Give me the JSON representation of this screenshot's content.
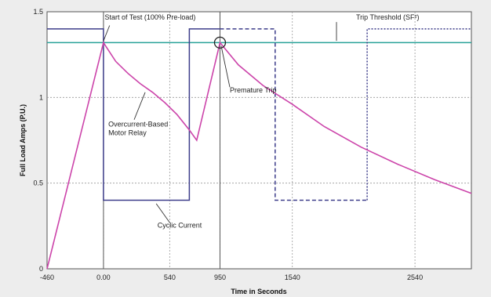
{
  "chart_data": {
    "type": "line",
    "xlabel": "Time in Seconds",
    "ylabel": "Full Load Amps (P.U.)",
    "xlim": [
      -460,
      3000
    ],
    "ylim": [
      0,
      1.5
    ],
    "x_ticks": [
      {
        "value": -460,
        "label": "-460"
      },
      {
        "value": 0,
        "label": "0.00"
      },
      {
        "value": 540,
        "label": "540"
      },
      {
        "value": 950,
        "label": "950"
      },
      {
        "value": 1540,
        "label": "1540"
      },
      {
        "value": 2540,
        "label": "2540"
      }
    ],
    "y_ticks": [
      {
        "value": 0,
        "label": "0"
      },
      {
        "value": 0.5,
        "label": "0.5"
      },
      {
        "value": 1,
        "label": "1"
      },
      {
        "value": 1.5,
        "label": "1.5"
      }
    ],
    "grid": true,
    "series": [
      {
        "key": "relay",
        "color": "#cc44aa",
        "style": "solid",
        "x": [
          -460,
          0,
          100,
          200,
          300,
          400,
          500,
          600,
          700,
          760,
          950,
          1100,
          1300,
          1540,
          1800,
          2100,
          2400,
          2700,
          3000
        ],
        "y": [
          0,
          1.32,
          1.21,
          1.14,
          1.08,
          1.03,
          0.97,
          0.9,
          0.81,
          0.75,
          1.32,
          1.19,
          1.07,
          0.96,
          0.83,
          0.71,
          0.61,
          0.52,
          0.44
        ]
      },
      {
        "key": "cyclic_current",
        "color": "#3d3d8a",
        "style": "solid",
        "x": [
          -460,
          0,
          0,
          700,
          700,
          950
        ],
        "y": [
          1.4,
          1.4,
          0.4,
          0.4,
          1.4,
          1.4
        ]
      },
      {
        "key": "cyclic_dashed",
        "color": "#3d3d8a",
        "style": "dashed",
        "x": [
          950,
          1400,
          1400,
          2150
        ],
        "y": [
          1.4,
          1.4,
          0.4,
          0.4
        ]
      },
      {
        "key": "cyclic_dotted",
        "color": "#3d3d8a",
        "style": "dotted",
        "x": [
          2150,
          2150,
          3000
        ],
        "y": [
          0.4,
          1.4,
          1.4
        ]
      },
      {
        "key": "trip_threshold",
        "color": "#2aa39a",
        "style": "solid",
        "x": [
          -460,
          3000
        ],
        "y": [
          1.32,
          1.32
        ]
      }
    ],
    "vertical_markers": [
      0,
      950
    ],
    "premature_trip_point": {
      "x": 950,
      "y": 1.32
    },
    "annotations": [
      {
        "key": "start",
        "text": "Start of Test (100% Pre-load)",
        "x": 10,
        "y": 1.455,
        "anchor": "start",
        "leader": [
          [
            0,
            1.33
          ],
          [
            50,
            1.42
          ]
        ]
      },
      {
        "key": "threshold",
        "text": "Trip Threshold (SF²)",
        "x": 2060,
        "y": 1.455,
        "anchor": "start",
        "leader": [
          [
            1900,
            1.44
          ],
          [
            1900,
            1.33
          ]
        ]
      },
      {
        "key": "premature",
        "text": "Premature Trip",
        "x": 1030,
        "y": 1.03,
        "anchor": "start",
        "leader": [
          [
            960,
            1.3
          ],
          [
            1030,
            1.06
          ]
        ]
      },
      {
        "key": "relay_label_1",
        "text": "Overcurrent-Based",
        "x": 40,
        "y": 0.83,
        "anchor": "start",
        "leader": [
          [
            250,
            0.87
          ],
          [
            340,
            1.03
          ]
        ]
      },
      {
        "key": "relay_label_2",
        "text": "Motor Relay",
        "x": 40,
        "y": 0.78,
        "anchor": "start",
        "leader": null
      },
      {
        "key": "cyclic",
        "text": "Cyclic Current",
        "x": 440,
        "y": 0.24,
        "anchor": "start",
        "leader": [
          [
            430,
            0.38
          ],
          [
            540,
            0.27
          ]
        ]
      }
    ]
  }
}
